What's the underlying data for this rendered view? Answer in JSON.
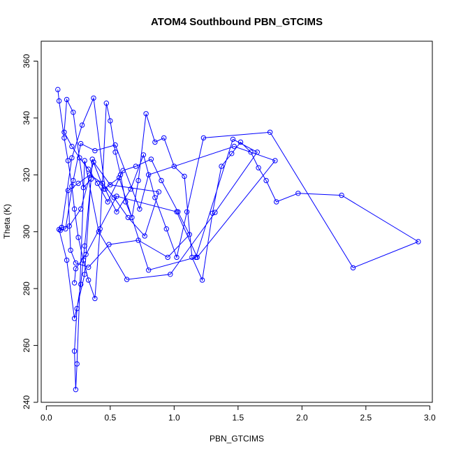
{
  "chart_data": {
    "type": "line",
    "title": "ATOM4 Southbound PBN_GTCIMS",
    "xlabel": "PBN_GTCIMS",
    "ylabel": "Theta (K)",
    "xlim": [
      -0.04,
      3.02
    ],
    "ylim": [
      240,
      367
    ],
    "xticks": [
      "0.0",
      "0.5",
      "1.0",
      "1.5",
      "2.0",
      "2.5",
      "3.0"
    ],
    "yticks": [
      "240",
      "260",
      "280",
      "300",
      "320",
      "340",
      "360"
    ],
    "grid": false,
    "legend": "none",
    "line_color": "#0000ff",
    "marker": "open-circle",
    "series": [
      {
        "x": [
          0.09,
          0.1,
          0.14,
          0.17,
          0.2,
          0.22,
          0.25,
          0.29,
          0.33,
          0.38,
          0.42,
          0.47,
          0.5,
          0.54,
          0.58,
          0.62,
          0.67,
          0.72,
          0.78,
          0.85,
          0.92,
          1.0,
          1.08,
          1.14,
          1.22,
          1.3,
          1.37,
          1.45,
          1.52,
          1.6,
          1.66,
          1.72,
          1.8,
          1.97,
          2.31,
          2.91,
          2.4,
          1.75,
          1.23,
          1.1,
          1.02,
          0.94,
          0.85,
          0.76,
          0.66,
          0.55,
          0.46,
          0.37,
          0.28,
          0.2,
          0.12,
          0.1,
          0.16,
          0.22,
          0.3,
          0.36,
          0.45,
          0.57,
          0.8,
          1.17,
          1.46,
          1.65,
          1.32,
          0.97,
          0.63,
          0.41,
          0.3,
          0.24,
          0.23,
          0.22,
          0.24,
          0.27,
          0.3,
          0.35,
          0.29,
          0.21,
          0.16,
          0.14,
          0.2,
          0.26,
          0.33,
          0.4,
          0.48,
          0.6,
          0.7,
          0.82,
          0.9,
          1.03,
          1.12,
          0.95,
          0.72,
          0.49,
          0.33,
          0.23,
          0.19,
          0.17,
          0.25,
          0.34,
          0.44,
          0.53,
          0.64,
          0.77,
          0.88,
          0.5,
          0.37,
          0.27,
          0.18,
          0.12,
          0.11,
          0.15,
          0.21,
          0.27,
          0.38,
          0.54,
          0.73,
          0.8,
          1.47,
          1.79,
          1.18,
          1.02,
          0.55,
          0.31,
          0.23,
          0.22
        ],
        "y": [
          350.0,
          346.0,
          333.0,
          325.0,
          316.0,
          308.0,
          298.0,
          290.0,
          283.0,
          276.5,
          301.0,
          345.2,
          339.0,
          328.0,
          320.0,
          310.5,
          305.0,
          318.0,
          341.5,
          331.5,
          333.0,
          323.0,
          319.5,
          291.0,
          283.0,
          306.5,
          323.0,
          327.5,
          331.5,
          328.0,
          322.5,
          318.0,
          310.5,
          313.5,
          312.8,
          296.5,
          287.3,
          335.0,
          333.0,
          307.0,
          291.0,
          301.0,
          312.0,
          327.0,
          315.0,
          307.0,
          315.0,
          347.0,
          337.5,
          326.0,
          301.5,
          300.8,
          290.0,
          269.5,
          285.0,
          325.5,
          315.0,
          319.0,
          286.5,
          291.0,
          332.5,
          328.0,
          306.8,
          285.0,
          283.2,
          300.0,
          325.0,
          253.5,
          244.5,
          258.0,
          273.0,
          281.5,
          295.0,
          318.5,
          315.5,
          342.0,
          346.5,
          335.0,
          330.0,
          326.0,
          322.0,
          317.0,
          310.5,
          321.5,
          323.0,
          325.5,
          318.0,
          307.0,
          299.0,
          291.0,
          297.0,
          295.5,
          287.5,
          289.0,
          293.5,
          314.5,
          317.0,
          320.0,
          317.0,
          312.0,
          305.0,
          298.5,
          314.0,
          316.5,
          324.5,
          308.0,
          302.0,
          301.5,
          300.5,
          301.0,
          318.0,
          331.0,
          328.5,
          330.5,
          308.0,
          320.0,
          330.0,
          325.0,
          291.0,
          307.0,
          312.5,
          292.0,
          287.0,
          282.0
        ]
      }
    ]
  }
}
